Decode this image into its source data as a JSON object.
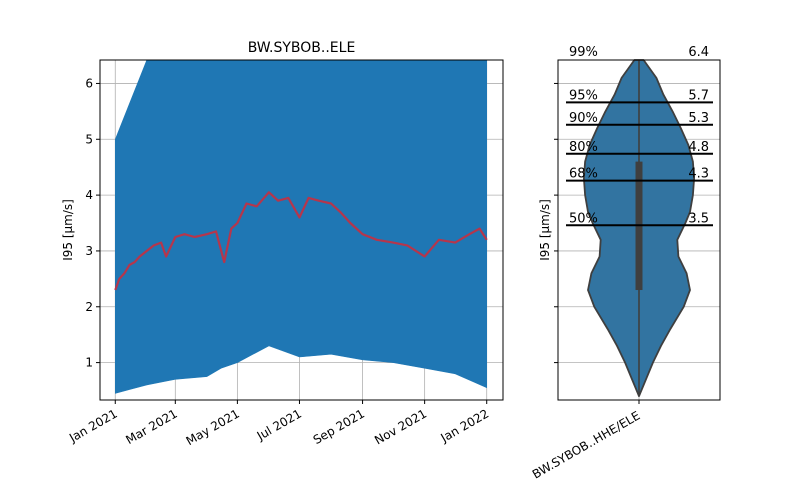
{
  "chart_data": [
    {
      "type": "line",
      "title": "BW.SYBOB..ELE",
      "ylabel": "I95 [μm/s]",
      "xlabel": "",
      "xlim": [
        "2020-12-17",
        "2022-01-17"
      ],
      "ylim": [
        0.33,
        6.42
      ],
      "xticks": [
        "Jan 2021",
        "Mar 2021",
        "May 2021",
        "Jul 2021",
        "Sep 2021",
        "Nov 2021",
        "Jan 2022"
      ],
      "xtick_dates": [
        "2021-01-01",
        "2021-03-01",
        "2021-05-01",
        "2021-07-01",
        "2021-09-01",
        "2021-11-01",
        "2022-01-01"
      ],
      "yticks": [
        1,
        2,
        3,
        4,
        5,
        6
      ],
      "grid": true,
      "series": [
        {
          "color": "#1f77b4",
          "style": "dense_band",
          "x": [
            "2021-01-01",
            "2021-02-01",
            "2021-03-01",
            "2021-04-01",
            "2021-04-15",
            "2021-05-01",
            "2021-06-01",
            "2021-07-01",
            "2021-08-01",
            "2021-09-01",
            "2021-10-01",
            "2021-11-01",
            "2021-12-01",
            "2022-01-01"
          ],
          "low": [
            0.45,
            0.6,
            0.7,
            0.75,
            0.9,
            1.0,
            1.3,
            1.1,
            1.15,
            1.05,
            1.0,
            0.9,
            0.8,
            0.55
          ],
          "high": [
            5.0,
            6.42,
            6.42,
            6.42,
            6.42,
            6.42,
            6.42,
            6.42,
            6.42,
            6.42,
            6.42,
            6.42,
            6.42,
            6.42
          ]
        },
        {
          "color": "#b5364c",
          "style": "line",
          "x": [
            "2021-01-01",
            "2021-01-05",
            "2021-01-10",
            "2021-01-15",
            "2021-01-20",
            "2021-01-25",
            "2021-02-01",
            "2021-02-08",
            "2021-02-15",
            "2021-02-20",
            "2021-03-01",
            "2021-03-10",
            "2021-03-20",
            "2021-04-01",
            "2021-04-10",
            "2021-04-18",
            "2021-04-25",
            "2021-05-01",
            "2021-05-10",
            "2021-05-20",
            "2021-06-01",
            "2021-06-10",
            "2021-06-20",
            "2021-07-01",
            "2021-07-10",
            "2021-07-20",
            "2021-08-01",
            "2021-08-10",
            "2021-08-20",
            "2021-09-01",
            "2021-09-15",
            "2021-10-01",
            "2021-10-15",
            "2021-11-01",
            "2021-11-15",
            "2021-12-01",
            "2021-12-15",
            "2021-12-25",
            "2022-01-01"
          ],
          "y": [
            2.3,
            2.5,
            2.6,
            2.75,
            2.8,
            2.9,
            3.0,
            3.1,
            3.15,
            2.9,
            3.25,
            3.3,
            3.25,
            3.3,
            3.35,
            2.8,
            3.4,
            3.5,
            3.85,
            3.8,
            4.05,
            3.9,
            3.95,
            3.6,
            3.95,
            3.9,
            3.85,
            3.7,
            3.5,
            3.3,
            3.2,
            3.15,
            3.1,
            2.9,
            3.2,
            3.15,
            3.3,
            3.4,
            3.2
          ]
        }
      ]
    },
    {
      "type": "violin",
      "ylabel": "I95 [μm/s]",
      "categories": [
        "BW.SYBOB..HHE/ELE"
      ],
      "ylim": [
        0.33,
        6.42
      ],
      "yticks": [
        1,
        2,
        3,
        4,
        5,
        6
      ],
      "grid": true,
      "fill_color": "#3274a1",
      "edge_color": "#3f3f3f",
      "min": 0.4,
      "max": 6.42,
      "box": {
        "q1": 2.3,
        "median": 3.45,
        "q3": 4.6
      },
      "profile": {
        "y": [
          0.4,
          0.7,
          1.0,
          1.3,
          1.6,
          2.0,
          2.3,
          2.6,
          2.9,
          3.2,
          3.5,
          3.7,
          4.0,
          4.3,
          4.6,
          4.9,
          5.2,
          5.5,
          5.8,
          6.1,
          6.42
        ],
        "width": [
          0.0,
          0.12,
          0.24,
          0.38,
          0.54,
          0.77,
          0.88,
          0.82,
          0.68,
          0.66,
          0.8,
          0.88,
          0.93,
          0.95,
          0.93,
          0.85,
          0.72,
          0.58,
          0.42,
          0.3,
          0.08
        ]
      },
      "percentiles": [
        {
          "label": "99%",
          "value": "6.4",
          "y": 6.42,
          "line": false
        },
        {
          "label": "95%",
          "value": "5.7",
          "y": 5.66,
          "line": true
        },
        {
          "label": "90%",
          "value": "5.3",
          "y": 5.26,
          "line": true
        },
        {
          "label": "80%",
          "value": "4.8",
          "y": 4.74,
          "line": true
        },
        {
          "label": "68%",
          "value": "4.3",
          "y": 4.26,
          "line": true
        },
        {
          "label": "50%",
          "value": "3.5",
          "y": 3.46,
          "line": true
        }
      ]
    }
  ]
}
